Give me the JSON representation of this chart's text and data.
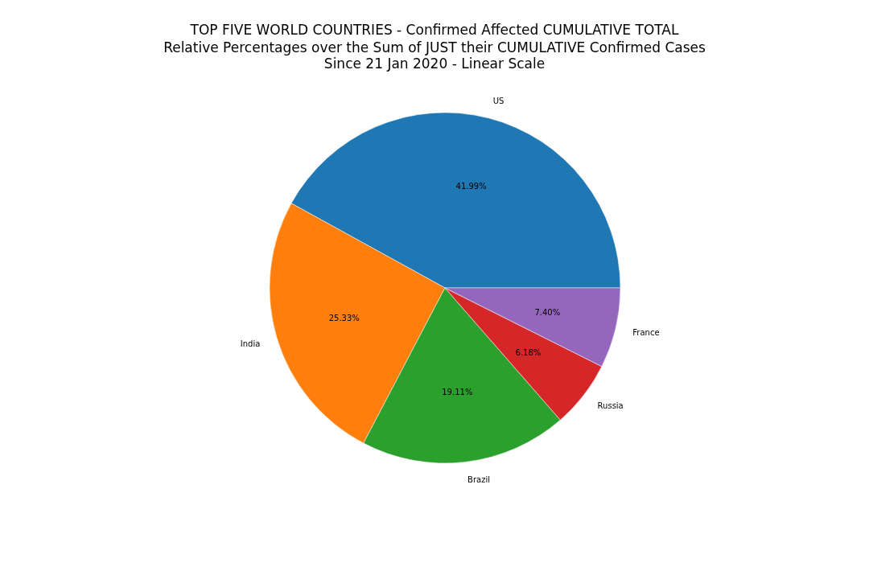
{
  "chart_data": {
    "type": "pie",
    "title": "TOP FIVE WORLD COUNTRIES - Confirmed Affected CUMULATIVE TOTAL",
    "subtitle": "Relative Percentages over the Sum of JUST their CUMULATIVE Confirmed Cases\nSince 21 Jan 2020 - Linear Scale",
    "categories": [
      "US",
      "India",
      "Brazil",
      "Russia",
      "France"
    ],
    "values": [
      41.99,
      25.33,
      19.11,
      6.18,
      7.4
    ],
    "colors": [
      "#1f77b4",
      "#ff7f0e",
      "#2ca02c",
      "#d62728",
      "#9467bd"
    ],
    "value_labels": [
      "41.99%",
      "25.33%",
      "19.11%",
      "6.18%",
      "7.40%"
    ],
    "legend": false
  }
}
